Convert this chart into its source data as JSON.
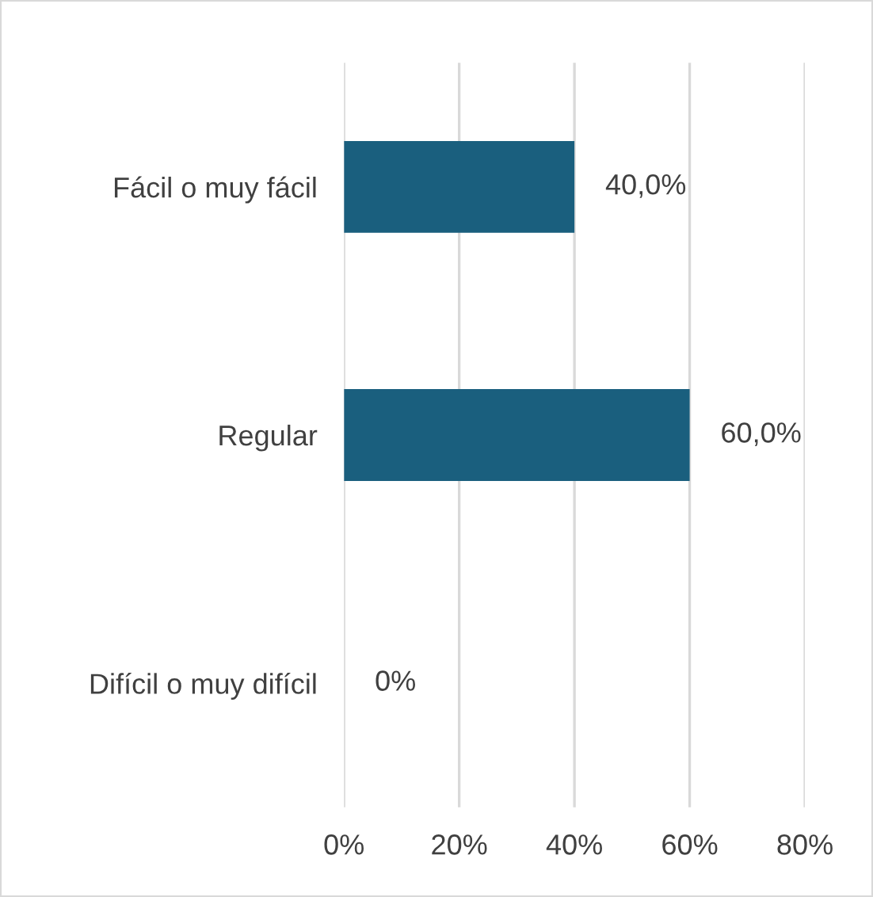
{
  "chart_data": {
    "type": "bar",
    "orientation": "horizontal",
    "categories": [
      "Fácil o muy fácil",
      "Regular",
      "Difícil o muy difícil"
    ],
    "values": [
      40,
      60,
      0
    ],
    "color": "#1a5f7e",
    "value_labels": [
      "40,0%",
      "60,0%",
      "0%"
    ],
    "xlim": [
      0,
      80
    ],
    "xticks": [
      {
        "value": 0,
        "label": "0%"
      },
      {
        "value": 20,
        "label": "20%"
      },
      {
        "value": 40,
        "label": "40%"
      },
      {
        "value": 60,
        "label": "60%"
      },
      {
        "value": 80,
        "label": "80%"
      }
    ],
    "grid": "x",
    "legend": false
  }
}
